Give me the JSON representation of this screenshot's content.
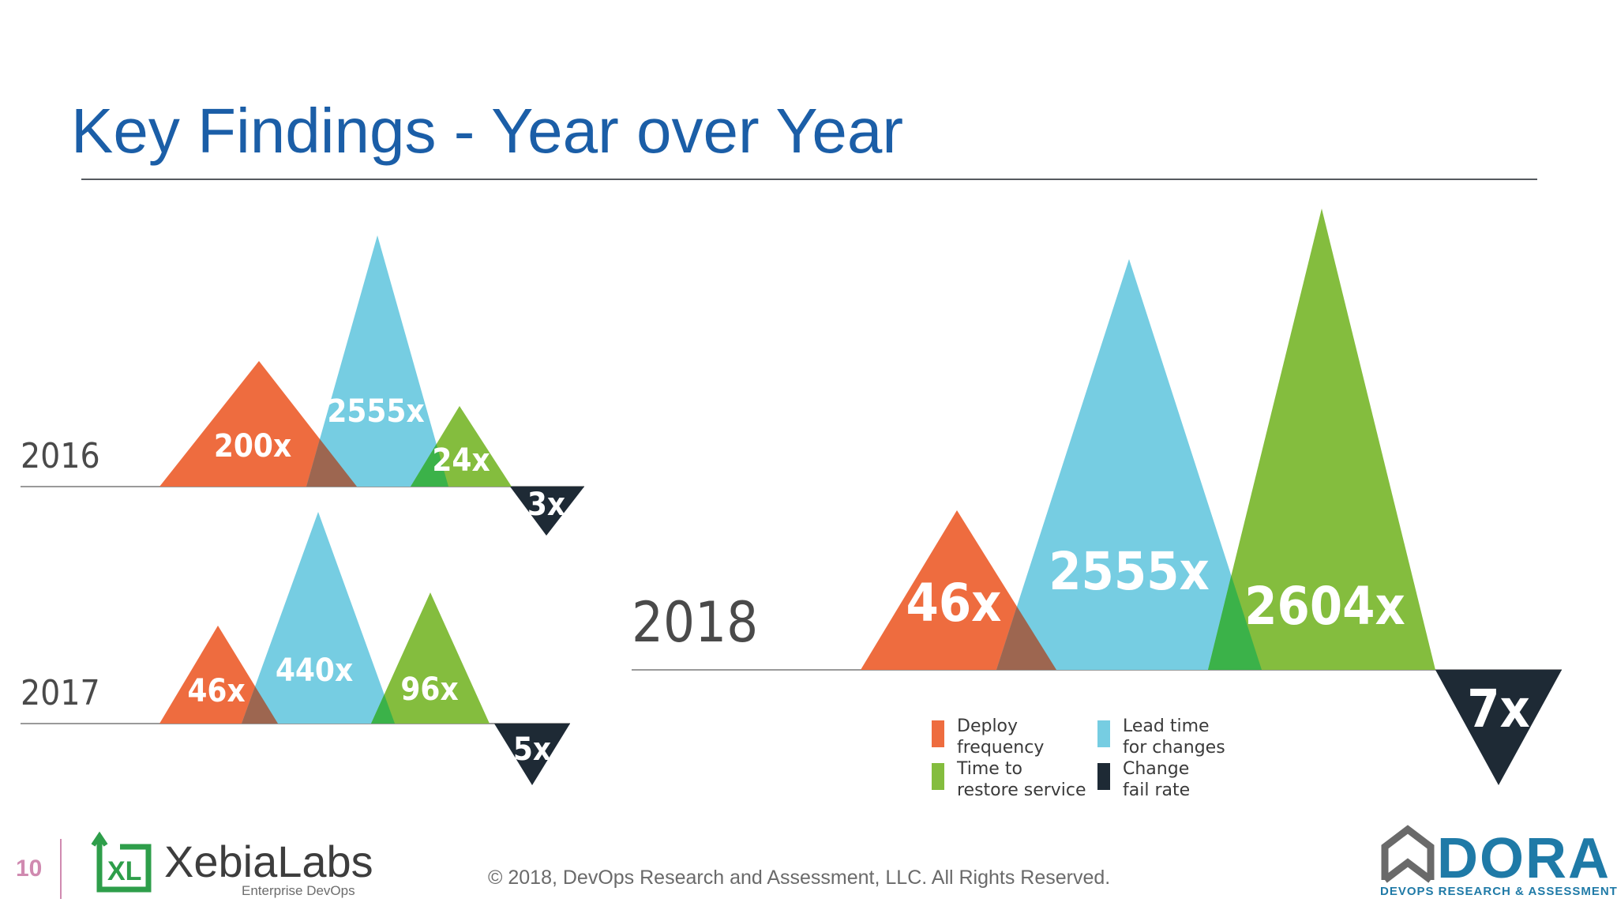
{
  "slide": {
    "title": "Key Findings - Year over Year",
    "page_number": "10",
    "copyright": "© 2018, DevOps Research and Assessment, LLC. All Rights Reserved.",
    "logos": {
      "xebialabs": {
        "mark": "XL",
        "name": "XebiaLabs",
        "tagline": "Enterprise DevOps"
      },
      "dora": {
        "name": "DORA",
        "tagline": "DEVOPS RESEARCH & ASSESSMENT"
      }
    }
  },
  "colors": {
    "title": "#1b5ea7",
    "deploy_frequency": "#ee6c3f",
    "lead_time": "#76cde2",
    "time_to_restore": "#84bd3e",
    "change_fail_rate": "#1e2a35",
    "overlap_orange_blue": "#9d6650",
    "overlap_blue_green": "#3bb249"
  },
  "chart_data": [
    {
      "type": "triangle-peaks",
      "year": "2016",
      "series": [
        {
          "name": "Deploy frequency",
          "label": "200x",
          "value": 200
        },
        {
          "name": "Lead time for changes",
          "label": "2555x",
          "value": 2555
        },
        {
          "name": "Time to restore service",
          "label": "24x",
          "value": 24
        },
        {
          "name": "Change fail rate",
          "label": "3x",
          "value": 3
        }
      ]
    },
    {
      "type": "triangle-peaks",
      "year": "2017",
      "series": [
        {
          "name": "Deploy frequency",
          "label": "46x",
          "value": 46
        },
        {
          "name": "Lead time for changes",
          "label": "440x",
          "value": 440
        },
        {
          "name": "Time to restore service",
          "label": "96x",
          "value": 96
        },
        {
          "name": "Change fail rate",
          "label": "5x",
          "value": 5
        }
      ]
    },
    {
      "type": "triangle-peaks",
      "year": "2018",
      "series": [
        {
          "name": "Deploy frequency",
          "label": "46x",
          "value": 46
        },
        {
          "name": "Lead time for changes",
          "label": "2555x",
          "value": 2555
        },
        {
          "name": "Time to restore service",
          "label": "2604x",
          "value": 2604
        },
        {
          "name": "Change fail rate",
          "label": "7x",
          "value": 7
        }
      ]
    }
  ],
  "legend": [
    {
      "line1": "Deploy",
      "line2": "frequency",
      "color": "#ee6c3f"
    },
    {
      "line1": "Lead time",
      "line2": "for changes",
      "color": "#76cde2"
    },
    {
      "line1": "Time to",
      "line2": "restore service",
      "color": "#84bd3e"
    },
    {
      "line1": "Change",
      "line2": "fail rate",
      "color": "#1e2a35"
    }
  ]
}
